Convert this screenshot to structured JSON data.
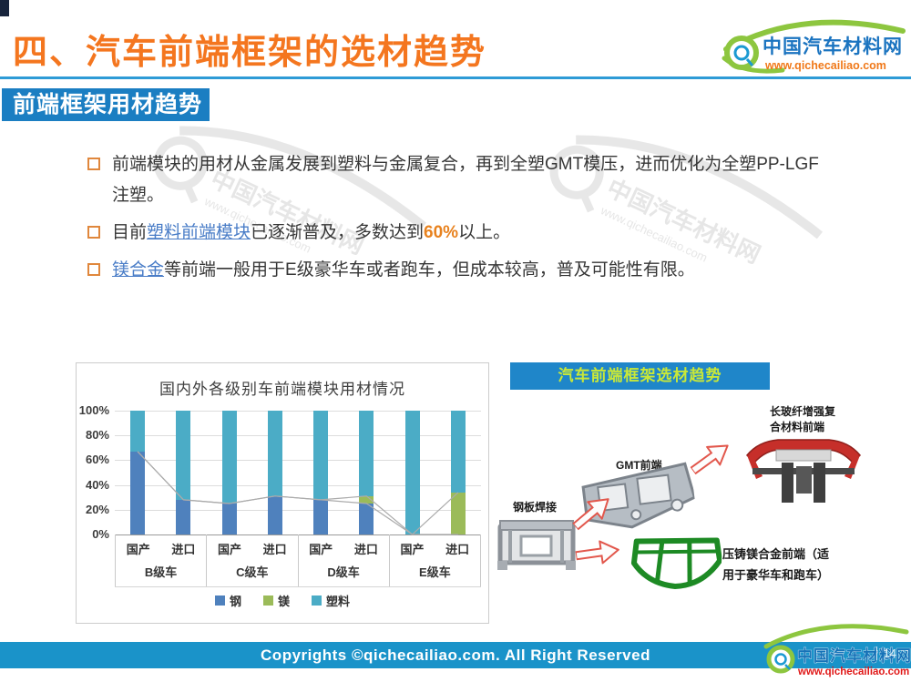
{
  "header": {
    "title": "四、汽车前端框架的选材趋势",
    "logo_name": "中国汽车材料网",
    "logo_url": "www.qichecailiao.com"
  },
  "section": {
    "banner": "前端框架用材趋势"
  },
  "bullets": {
    "b1": "前端模块的用材从金属发展到塑料与金属复合，再到全塑GMT模压，进而优化为全塑PP-LGF注塑。",
    "b2_pre": "目前",
    "b2_link": "塑料前端模块",
    "b2_mid": "已逐渐普及，多数达到",
    "b2_pct": "60%",
    "b2_post": "以上。",
    "b3_link": "镁合金",
    "b3_rest": "等前端一般用于E级豪华车或者跑车，但成本较高，普及可能性有限。"
  },
  "chart_data": {
    "type": "bar",
    "subtype": "stacked-column",
    "title": "国内外各级别车前端模块用材情况",
    "groups": [
      "B级车",
      "C级车",
      "D级车",
      "E级车"
    ],
    "subcategories": [
      "国产",
      "进口"
    ],
    "categories": [
      "B级车-国产",
      "B级车-进口",
      "C级车-国产",
      "C级车-进口",
      "D级车-国产",
      "D级车-进口",
      "E级车-国产",
      "E级车-进口"
    ],
    "series": [
      {
        "name": "钢",
        "color": "#4f81bd",
        "values": [
          67,
          28,
          25,
          31,
          28,
          25,
          0,
          0
        ]
      },
      {
        "name": "镁",
        "color": "#9bbb59",
        "values": [
          0,
          0,
          0,
          0,
          0,
          6,
          0,
          34
        ]
      },
      {
        "name": "塑料",
        "color": "#4bacc6",
        "values": [
          33,
          72,
          75,
          69,
          72,
          69,
          100,
          66
        ]
      }
    ],
    "yticks": [
      "0%",
      "20%",
      "40%",
      "60%",
      "80%",
      "100%"
    ],
    "ylim": [
      0,
      100
    ],
    "grid": true,
    "series_lines": true,
    "legend_position": "bottom"
  },
  "right_panel": {
    "title": "汽车前端框架选材趋势",
    "label_steel": "钢板焊接",
    "label_gmt": "GMT前端",
    "label_composite_1": "长玻纤增强复",
    "label_composite_2": "合材料前端",
    "label_mg_1": "压铸镁合金前端（适",
    "label_mg_2": "用于豪华车和跑车）"
  },
  "footer": {
    "copyright": "Copyrights ©qichecailiao.com. All Right Reserved",
    "page": "14",
    "logo_name": "中国汽车材料网",
    "logo_url": "www.qichecailiao.com"
  },
  "watermark": {
    "name": "中国汽车材料网",
    "url": "www.qichecailiao.com"
  },
  "colors": {
    "accent_orange": "#f4761f",
    "banner_blue": "#1b7ec2",
    "panel_blue": "#1f86c9",
    "panel_title_green": "#c9e838",
    "footer_blue": "#1a93c9",
    "link_blue": "#4a7dc7",
    "steel": "#4f81bd",
    "magnesium": "#9bbb59",
    "plastic": "#4bacc6"
  }
}
